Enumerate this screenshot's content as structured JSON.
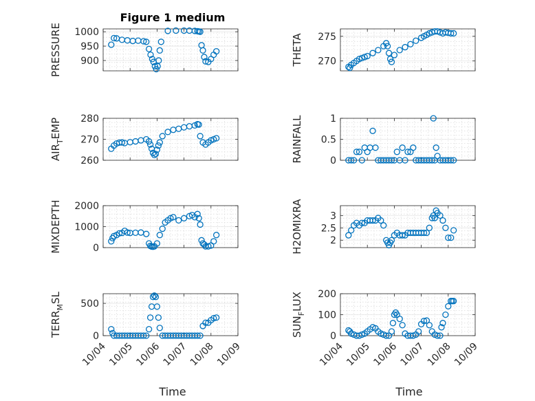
{
  "figure": {
    "title": "Figure 1 medium",
    "marker_color": "#0072BD",
    "x_tick_labels": [
      "10/04",
      "10/05",
      "10/06",
      "10/07",
      "10/08",
      "10/09"
    ],
    "xlabel": "Time"
  },
  "chart_data": [
    {
      "type": "scatter",
      "ylabel": "PRESSURE",
      "grid": true,
      "ylim": [
        864,
        1010
      ],
      "yticks": [
        900,
        950,
        1000
      ],
      "xlim": [
        0,
        5
      ],
      "x_unit": "days since 10/04",
      "x": [
        0.3,
        0.4,
        0.5,
        0.7,
        0.9,
        1.1,
        1.3,
        1.5,
        1.6,
        1.7,
        1.76,
        1.82,
        1.87,
        1.92,
        1.97,
        2.02,
        2.06,
        2.1,
        2.15,
        2.4,
        2.7,
        3.0,
        3.2,
        3.4,
        3.5,
        3.55,
        3.6,
        3.65,
        3.7,
        3.75,
        3.8,
        3.9,
        4.0,
        4.1,
        4.2
      ],
      "y": [
        955,
        978,
        977,
        972,
        970,
        968,
        969,
        967,
        965,
        940,
        920,
        905,
        895,
        880,
        870,
        880,
        900,
        935,
        965,
        1003,
        1004,
        1004,
        1004,
        1003,
        1002,
        1001,
        1000,
        953,
        935,
        912,
        897,
        895,
        905,
        920,
        932
      ]
    },
    {
      "type": "scatter",
      "ylabel": "THETA",
      "grid": true,
      "ylim": [
        268,
        276.5
      ],
      "yticks": [
        270,
        275
      ],
      "xlim": [
        0,
        5
      ],
      "x": [
        0.3,
        0.35,
        0.4,
        0.5,
        0.6,
        0.7,
        0.8,
        0.9,
        1.0,
        1.2,
        1.4,
        1.6,
        1.7,
        1.75,
        1.8,
        1.85,
        1.9,
        2.0,
        2.2,
        2.4,
        2.6,
        2.8,
        3.0,
        3.1,
        3.2,
        3.3,
        3.4,
        3.5,
        3.6,
        3.7,
        3.8,
        3.9,
        4.0,
        4.1,
        4.2
      ],
      "y": [
        268.8,
        268.6,
        269.2,
        269.6,
        270.0,
        270.4,
        270.6,
        270.8,
        271.0,
        271.6,
        272.2,
        273.0,
        273.6,
        273.0,
        271.6,
        270.4,
        269.8,
        271.2,
        272.2,
        272.8,
        273.4,
        274.1,
        274.7,
        275.0,
        275.3,
        275.6,
        275.8,
        276.0,
        276.0,
        275.8,
        275.6,
        275.8,
        275.7,
        275.6,
        275.6
      ]
    },
    {
      "type": "scatter",
      "ylabel": "AIR",
      "ylabel_sub": "T",
      "ylabel_rest": "EMP",
      "grid": true,
      "ylim": [
        260,
        280
      ],
      "yticks": [
        260,
        270,
        280
      ],
      "xlim": [
        0,
        5
      ],
      "x": [
        0.3,
        0.4,
        0.5,
        0.6,
        0.7,
        0.8,
        1.0,
        1.2,
        1.4,
        1.6,
        1.7,
        1.75,
        1.8,
        1.85,
        1.9,
        1.95,
        2.0,
        2.05,
        2.1,
        2.2,
        2.4,
        2.6,
        2.8,
        3.0,
        3.2,
        3.4,
        3.5,
        3.55,
        3.6,
        3.7,
        3.8,
        3.9,
        4.0,
        4.1,
        4.2
      ],
      "y": [
        265.5,
        267.0,
        268.0,
        268.4,
        268.5,
        268.2,
        268.6,
        269.0,
        269.5,
        270.0,
        269.0,
        267.5,
        265.5,
        263.5,
        262.5,
        263.0,
        265.0,
        267.0,
        268.5,
        271.5,
        273.5,
        274.5,
        275.0,
        275.7,
        276.2,
        276.6,
        277.2,
        277.0,
        271.5,
        268.5,
        267.5,
        268.5,
        269.5,
        270.0,
        270.5
      ]
    },
    {
      "type": "scatter",
      "ylabel": "RAINFALL",
      "grid": true,
      "ylim": [
        0,
        1
      ],
      "yticks": [
        0,
        0.5,
        1
      ],
      "xlim": [
        0,
        5
      ],
      "x": [
        0.3,
        0.4,
        0.5,
        0.6,
        0.7,
        0.8,
        0.9,
        1.0,
        1.1,
        1.2,
        1.3,
        1.4,
        1.5,
        1.6,
        1.7,
        1.8,
        1.9,
        2.0,
        2.1,
        2.2,
        2.3,
        2.4,
        2.5,
        2.6,
        2.7,
        2.8,
        2.9,
        3.0,
        3.1,
        3.2,
        3.3,
        3.4,
        3.45,
        3.5,
        3.55,
        3.6,
        3.7,
        3.8,
        3.9,
        4.0,
        4.1,
        4.2
      ],
      "y": [
        0,
        0,
        0,
        0.2,
        0.2,
        0,
        0.3,
        0.2,
        0.3,
        0.7,
        0.3,
        0,
        0,
        0,
        0,
        0,
        0,
        0,
        0.2,
        0,
        0.3,
        0,
        0.2,
        0.2,
        0.3,
        0,
        0,
        0,
        0,
        0,
        0,
        0,
        1.0,
        0,
        0.3,
        0.1,
        0,
        0,
        0,
        0,
        0,
        0
      ]
    },
    {
      "type": "scatter",
      "ylabel": "MIXDEPTH",
      "grid": true,
      "ylim": [
        0,
        2000
      ],
      "yticks": [
        0,
        1000,
        2000
      ],
      "xlim": [
        0,
        5
      ],
      "x": [
        0.3,
        0.35,
        0.4,
        0.5,
        0.6,
        0.7,
        0.8,
        0.9,
        1.0,
        1.2,
        1.4,
        1.6,
        1.7,
        1.75,
        1.8,
        1.85,
        1.9,
        2.0,
        2.1,
        2.2,
        2.3,
        2.4,
        2.5,
        2.6,
        2.8,
        3.0,
        3.2,
        3.3,
        3.4,
        3.5,
        3.55,
        3.6,
        3.65,
        3.7,
        3.75,
        3.8,
        3.9,
        4.0,
        4.1,
        4.2
      ],
      "y": [
        300,
        450,
        550,
        600,
        680,
        700,
        800,
        720,
        700,
        710,
        720,
        650,
        200,
        80,
        50,
        40,
        60,
        200,
        600,
        900,
        1200,
        1300,
        1400,
        1450,
        1300,
        1400,
        1500,
        1550,
        1450,
        1600,
        1400,
        1100,
        350,
        200,
        150,
        60,
        60,
        100,
        300,
        600
      ]
    },
    {
      "type": "scatter",
      "ylabel": "H2OMIXRA",
      "grid": true,
      "ylim": [
        1.7,
        3.4
      ],
      "yticks": [
        2,
        2.5,
        3
      ],
      "xlim": [
        0,
        5
      ],
      "x": [
        0.3,
        0.4,
        0.5,
        0.6,
        0.7,
        0.8,
        0.9,
        1.0,
        1.1,
        1.2,
        1.3,
        1.4,
        1.5,
        1.6,
        1.7,
        1.75,
        1.8,
        1.85,
        1.9,
        2.0,
        2.1,
        2.2,
        2.3,
        2.4,
        2.5,
        2.6,
        2.7,
        2.8,
        2.9,
        3.0,
        3.1,
        3.2,
        3.3,
        3.4,
        3.45,
        3.5,
        3.55,
        3.6,
        3.7,
        3.8,
        3.9,
        4.0,
        4.1,
        4.2
      ],
      "y": [
        2.2,
        2.4,
        2.6,
        2.7,
        2.6,
        2.7,
        2.7,
        2.8,
        2.8,
        2.8,
        2.8,
        2.9,
        2.8,
        2.6,
        2.0,
        1.9,
        1.8,
        1.9,
        2.0,
        2.2,
        2.3,
        2.2,
        2.2,
        2.2,
        2.3,
        2.3,
        2.3,
        2.3,
        2.3,
        2.3,
        2.3,
        2.3,
        2.5,
        2.9,
        3.0,
        2.9,
        3.2,
        3.1,
        3.0,
        2.8,
        2.5,
        2.1,
        2.1,
        2.4
      ]
    },
    {
      "type": "scatter",
      "ylabel": "TERR",
      "ylabel_sub": "M",
      "ylabel_rest": "SL",
      "grid": true,
      "ylim": [
        0,
        650
      ],
      "yticks": [
        0,
        500
      ],
      "xlim": [
        0,
        5
      ],
      "x": [
        0.3,
        0.35,
        0.4,
        0.5,
        0.6,
        0.7,
        0.8,
        0.9,
        1.0,
        1.1,
        1.2,
        1.3,
        1.4,
        1.5,
        1.6,
        1.7,
        1.75,
        1.8,
        1.85,
        1.9,
        1.95,
        2.0,
        2.05,
        2.1,
        2.2,
        2.3,
        2.4,
        2.5,
        2.6,
        2.7,
        2.8,
        2.9,
        3.0,
        3.1,
        3.2,
        3.3,
        3.4,
        3.5,
        3.6,
        3.7,
        3.8,
        3.9,
        4.0,
        4.1,
        4.2
      ],
      "y": [
        100,
        40,
        0,
        0,
        0,
        0,
        0,
        0,
        0,
        0,
        0,
        0,
        0,
        0,
        0,
        100,
        280,
        450,
        600,
        620,
        600,
        450,
        280,
        120,
        0,
        0,
        0,
        0,
        0,
        0,
        0,
        0,
        0,
        0,
        0,
        0,
        0,
        0,
        0,
        150,
        200,
        200,
        240,
        270,
        280
      ]
    },
    {
      "type": "scatter",
      "ylabel": "SUN",
      "ylabel_sub": "F",
      "ylabel_rest": "LUX",
      "grid": true,
      "ylim": [
        0,
        200
      ],
      "yticks": [
        0,
        100,
        200
      ],
      "xlim": [
        0,
        5
      ],
      "x": [
        0.3,
        0.35,
        0.4,
        0.5,
        0.6,
        0.7,
        0.8,
        0.9,
        1.0,
        1.1,
        1.2,
        1.3,
        1.4,
        1.5,
        1.6,
        1.7,
        1.8,
        1.9,
        1.95,
        2.0,
        2.05,
        2.1,
        2.2,
        2.3,
        2.4,
        2.5,
        2.6,
        2.7,
        2.8,
        2.9,
        3.0,
        3.1,
        3.2,
        3.3,
        3.4,
        3.5,
        3.6,
        3.7,
        3.75,
        3.8,
        3.9,
        4.0,
        4.1,
        4.15,
        4.2
      ],
      "y": [
        25,
        20,
        10,
        5,
        0,
        0,
        5,
        10,
        20,
        30,
        40,
        35,
        20,
        10,
        5,
        0,
        0,
        20,
        60,
        100,
        110,
        100,
        80,
        50,
        10,
        0,
        0,
        0,
        5,
        20,
        55,
        70,
        72,
        50,
        20,
        5,
        0,
        0,
        40,
        60,
        100,
        140,
        165,
        165,
        165
      ]
    }
  ]
}
